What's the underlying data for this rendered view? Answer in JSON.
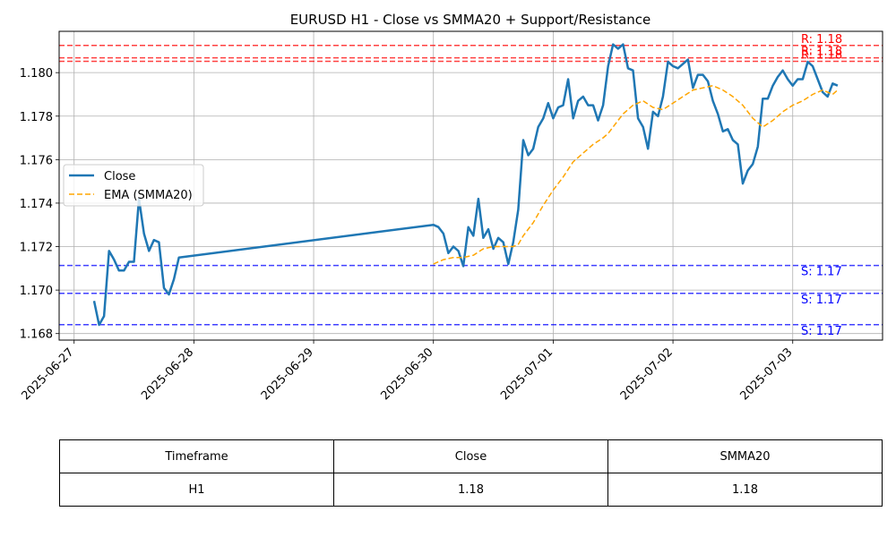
{
  "chart_data": {
    "type": "line",
    "title": "EURUSD H1 - Close vs SMMA20 + Support/Resistance",
    "xlabel": "",
    "ylabel": "",
    "x_tick_labels": [
      "2025-06-27",
      "2025-06-28",
      "2025-06-29",
      "2025-06-30",
      "2025-07-01",
      "2025-07-02",
      "2025-07-03"
    ],
    "y_tick_labels": [
      "1.168",
      "1.170",
      "1.172",
      "1.174",
      "1.176",
      "1.178",
      "1.180"
    ],
    "x_range": [
      "2025-06-26 21:00",
      "2025-07-03 18:00"
    ],
    "ylim": [
      1.1677,
      1.1819
    ],
    "grid": true,
    "legend_position": "center-left",
    "series": [
      {
        "name": "Close",
        "color": "#1f77b4",
        "style": "solid",
        "points": [
          [
            "2025-06-27 04:00",
            1.1695
          ],
          [
            "2025-06-27 05:00",
            1.1684
          ],
          [
            "2025-06-27 06:00",
            1.1688
          ],
          [
            "2025-06-27 07:00",
            1.1718
          ],
          [
            "2025-06-27 08:00",
            1.1714
          ],
          [
            "2025-06-27 09:00",
            1.1709
          ],
          [
            "2025-06-27 10:00",
            1.1709
          ],
          [
            "2025-06-27 11:00",
            1.1713
          ],
          [
            "2025-06-27 12:00",
            1.1713
          ],
          [
            "2025-06-27 13:00",
            1.1742
          ],
          [
            "2025-06-27 14:00",
            1.1726
          ],
          [
            "2025-06-27 15:00",
            1.1718
          ],
          [
            "2025-06-27 16:00",
            1.1723
          ],
          [
            "2025-06-27 17:00",
            1.1722
          ],
          [
            "2025-06-27 18:00",
            1.1701
          ],
          [
            "2025-06-27 19:00",
            1.1698
          ],
          [
            "2025-06-27 20:00",
            1.1705
          ],
          [
            "2025-06-27 21:00",
            1.1715
          ],
          [
            "2025-06-30 00:00",
            1.173
          ],
          [
            "2025-06-30 01:00",
            1.1729
          ],
          [
            "2025-06-30 02:00",
            1.1726
          ],
          [
            "2025-06-30 03:00",
            1.1717
          ],
          [
            "2025-06-30 04:00",
            1.172
          ],
          [
            "2025-06-30 05:00",
            1.1718
          ],
          [
            "2025-06-30 06:00",
            1.1711
          ],
          [
            "2025-06-30 07:00",
            1.1729
          ],
          [
            "2025-06-30 08:00",
            1.1725
          ],
          [
            "2025-06-30 09:00",
            1.1742
          ],
          [
            "2025-06-30 10:00",
            1.1724
          ],
          [
            "2025-06-30 11:00",
            1.1728
          ],
          [
            "2025-06-30 12:00",
            1.1719
          ],
          [
            "2025-06-30 13:00",
            1.1724
          ],
          [
            "2025-06-30 14:00",
            1.1722
          ],
          [
            "2025-06-30 15:00",
            1.1712
          ],
          [
            "2025-06-30 16:00",
            1.1722
          ],
          [
            "2025-06-30 17:00",
            1.1737
          ],
          [
            "2025-06-30 18:00",
            1.1769
          ],
          [
            "2025-06-30 19:00",
            1.1762
          ],
          [
            "2025-06-30 20:00",
            1.1765
          ],
          [
            "2025-06-30 21:00",
            1.1775
          ],
          [
            "2025-06-30 22:00",
            1.1779
          ],
          [
            "2025-06-30 23:00",
            1.1786
          ],
          [
            "2025-07-01 00:00",
            1.1779
          ],
          [
            "2025-07-01 01:00",
            1.1784
          ],
          [
            "2025-07-01 02:00",
            1.1785
          ],
          [
            "2025-07-01 03:00",
            1.1797
          ],
          [
            "2025-07-01 04:00",
            1.1779
          ],
          [
            "2025-07-01 05:00",
            1.1787
          ],
          [
            "2025-07-01 06:00",
            1.1789
          ],
          [
            "2025-07-01 07:00",
            1.1785
          ],
          [
            "2025-07-01 08:00",
            1.1785
          ],
          [
            "2025-07-01 09:00",
            1.1778
          ],
          [
            "2025-07-01 10:00",
            1.1785
          ],
          [
            "2025-07-01 11:00",
            1.1803
          ],
          [
            "2025-07-01 12:00",
            1.1813
          ],
          [
            "2025-07-01 13:00",
            1.1811
          ],
          [
            "2025-07-01 14:00",
            1.1813
          ],
          [
            "2025-07-01 15:00",
            1.1802
          ],
          [
            "2025-07-01 16:00",
            1.1801
          ],
          [
            "2025-07-01 17:00",
            1.1779
          ],
          [
            "2025-07-01 18:00",
            1.1775
          ],
          [
            "2025-07-01 19:00",
            1.1765
          ],
          [
            "2025-07-01 20:00",
            1.1782
          ],
          [
            "2025-07-01 21:00",
            1.178
          ],
          [
            "2025-07-01 22:00",
            1.1789
          ],
          [
            "2025-07-01 23:00",
            1.1805
          ],
          [
            "2025-07-02 00:00",
            1.1803
          ],
          [
            "2025-07-02 01:00",
            1.1802
          ],
          [
            "2025-07-02 02:00",
            1.1804
          ],
          [
            "2025-07-02 03:00",
            1.1806
          ],
          [
            "2025-07-02 04:00",
            1.1793
          ],
          [
            "2025-07-02 05:00",
            1.1799
          ],
          [
            "2025-07-02 06:00",
            1.1799
          ],
          [
            "2025-07-02 07:00",
            1.1796
          ],
          [
            "2025-07-02 08:00",
            1.1787
          ],
          [
            "2025-07-02 09:00",
            1.1781
          ],
          [
            "2025-07-02 10:00",
            1.1773
          ],
          [
            "2025-07-02 11:00",
            1.1774
          ],
          [
            "2025-07-02 12:00",
            1.1769
          ],
          [
            "2025-07-02 13:00",
            1.1767
          ],
          [
            "2025-07-02 14:00",
            1.1749
          ],
          [
            "2025-07-02 15:00",
            1.1755
          ],
          [
            "2025-07-02 16:00",
            1.1758
          ],
          [
            "2025-07-02 17:00",
            1.1766
          ],
          [
            "2025-07-02 18:00",
            1.1788
          ],
          [
            "2025-07-02 19:00",
            1.1788
          ],
          [
            "2025-07-02 20:00",
            1.1794
          ],
          [
            "2025-07-02 21:00",
            1.1798
          ],
          [
            "2025-07-02 22:00",
            1.1801
          ],
          [
            "2025-07-02 23:00",
            1.1797
          ],
          [
            "2025-07-03 00:00",
            1.1794
          ],
          [
            "2025-07-03 01:00",
            1.1797
          ],
          [
            "2025-07-03 02:00",
            1.1797
          ],
          [
            "2025-07-03 03:00",
            1.1805
          ],
          [
            "2025-07-03 04:00",
            1.1803
          ],
          [
            "2025-07-03 05:00",
            1.1797
          ],
          [
            "2025-07-03 06:00",
            1.1791
          ],
          [
            "2025-07-03 07:00",
            1.1789
          ],
          [
            "2025-07-03 08:00",
            1.1795
          ],
          [
            "2025-07-03 09:00",
            1.1794
          ]
        ]
      },
      {
        "name": "EMA (SMMA20)",
        "color": "#ffa500",
        "style": "dashed",
        "points": [
          [
            "2025-06-30 00:00",
            1.1712
          ],
          [
            "2025-06-30 02:00",
            1.1714
          ],
          [
            "2025-06-30 04:00",
            1.1715
          ],
          [
            "2025-06-30 06:00",
            1.1715
          ],
          [
            "2025-06-30 08:00",
            1.1716
          ],
          [
            "2025-06-30 10:00",
            1.1719
          ],
          [
            "2025-06-30 12:00",
            1.172
          ],
          [
            "2025-06-30 14:00",
            1.172
          ],
          [
            "2025-06-30 16:00",
            1.172
          ],
          [
            "2025-06-30 17:00",
            1.1721
          ],
          [
            "2025-06-30 18:00",
            1.1725
          ],
          [
            "2025-06-30 20:00",
            1.1731
          ],
          [
            "2025-06-30 22:00",
            1.1739
          ],
          [
            "2025-07-01 00:00",
            1.1746
          ],
          [
            "2025-07-01 02:00",
            1.1752
          ],
          [
            "2025-07-01 04:00",
            1.1759
          ],
          [
            "2025-07-01 06:00",
            1.1763
          ],
          [
            "2025-07-01 08:00",
            1.1767
          ],
          [
            "2025-07-01 10:00",
            1.177
          ],
          [
            "2025-07-01 11:00",
            1.1772
          ],
          [
            "2025-07-01 12:00",
            1.1775
          ],
          [
            "2025-07-01 14:00",
            1.1781
          ],
          [
            "2025-07-01 16:00",
            1.1785
          ],
          [
            "2025-07-01 18:00",
            1.1787
          ],
          [
            "2025-07-01 20:00",
            1.1784
          ],
          [
            "2025-07-01 22:00",
            1.1783
          ],
          [
            "2025-07-02 00:00",
            1.1786
          ],
          [
            "2025-07-02 02:00",
            1.1789
          ],
          [
            "2025-07-02 04:00",
            1.1792
          ],
          [
            "2025-07-02 06:00",
            1.1793
          ],
          [
            "2025-07-02 08:00",
            1.1794
          ],
          [
            "2025-07-02 10:00",
            1.1792
          ],
          [
            "2025-07-02 12:00",
            1.1789
          ],
          [
            "2025-07-02 14:00",
            1.1785
          ],
          [
            "2025-07-02 16:00",
            1.1779
          ],
          [
            "2025-07-02 18:00",
            1.1775
          ],
          [
            "2025-07-02 20:00",
            1.1778
          ],
          [
            "2025-07-02 22:00",
            1.1782
          ],
          [
            "2025-07-03 00:00",
            1.1785
          ],
          [
            "2025-07-03 02:00",
            1.1787
          ],
          [
            "2025-07-03 04:00",
            1.179
          ],
          [
            "2025-07-03 06:00",
            1.1792
          ],
          [
            "2025-07-03 08:00",
            1.179
          ],
          [
            "2025-07-03 09:00",
            1.1792
          ]
        ]
      }
    ],
    "reference_lines": [
      {
        "kind": "resistance",
        "label": "R: 1.18",
        "value": 1.18125,
        "color": "#ff0000"
      },
      {
        "kind": "resistance",
        "label": "R: 1.18",
        "value": 1.18068,
        "color": "#ff0000"
      },
      {
        "kind": "resistance",
        "label": "R: 1.18",
        "value": 1.18052,
        "color": "#ff0000"
      },
      {
        "kind": "support",
        "label": "S: 1.17",
        "value": 1.17113,
        "color": "#0000ff"
      },
      {
        "kind": "support",
        "label": "S: 1.17",
        "value": 1.16985,
        "color": "#0000ff"
      },
      {
        "kind": "support",
        "label": "S: 1.17",
        "value": 1.16841,
        "color": "#0000ff"
      }
    ]
  },
  "table": {
    "headers": [
      "Timeframe",
      "Close",
      "SMMA20"
    ],
    "row": [
      "H1",
      "1.18",
      "1.18"
    ]
  }
}
